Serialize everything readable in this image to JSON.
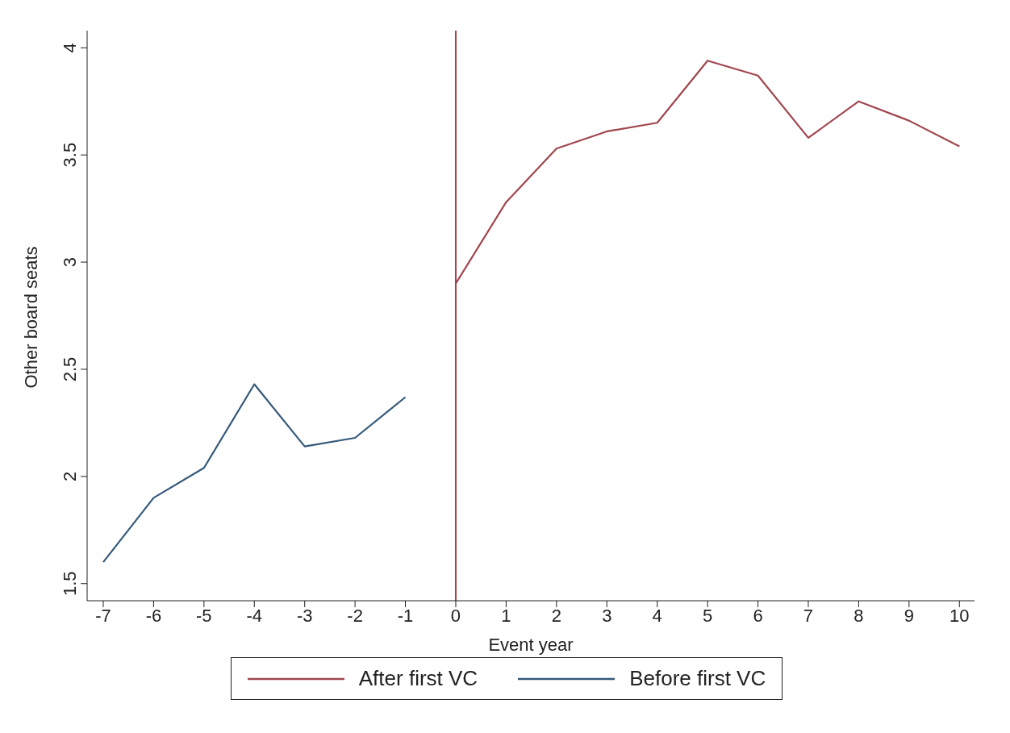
{
  "chart_data": {
    "type": "line",
    "xlabel": "Event year",
    "ylabel": "Other board seats",
    "series": [
      {
        "name": "Before first VC",
        "color": "#34597a",
        "x": [
          -7,
          -6,
          -5,
          -4,
          -3,
          -2,
          -1
        ],
        "values": [
          1.6,
          1.9,
          2.04,
          2.43,
          2.14,
          2.18,
          2.37
        ]
      },
      {
        "name": "After first VC",
        "color": "#a0464f",
        "x": [
          0,
          1,
          2,
          3,
          4,
          5,
          6,
          7,
          8,
          9,
          10
        ],
        "values": [
          2.9,
          3.28,
          3.53,
          3.61,
          3.65,
          3.94,
          3.87,
          3.58,
          3.75,
          3.66,
          3.54
        ]
      }
    ],
    "xlim": [
      -7.32,
      10.3
    ],
    "xticks": [
      -7,
      -6,
      -5,
      -4,
      -3,
      -2,
      -1,
      0,
      1,
      2,
      3,
      4,
      5,
      6,
      7,
      8,
      9,
      10
    ],
    "ylim": [
      1.42,
      4.08
    ],
    "yticks": [
      1.5,
      2,
      2.5,
      3,
      3.5,
      4
    ],
    "ref_lines": [
      {
        "axis": "x",
        "value": 0,
        "color": "#a0464f"
      }
    ],
    "grid": false,
    "legend": "bottom",
    "marker": "none",
    "line_style": "solid"
  }
}
